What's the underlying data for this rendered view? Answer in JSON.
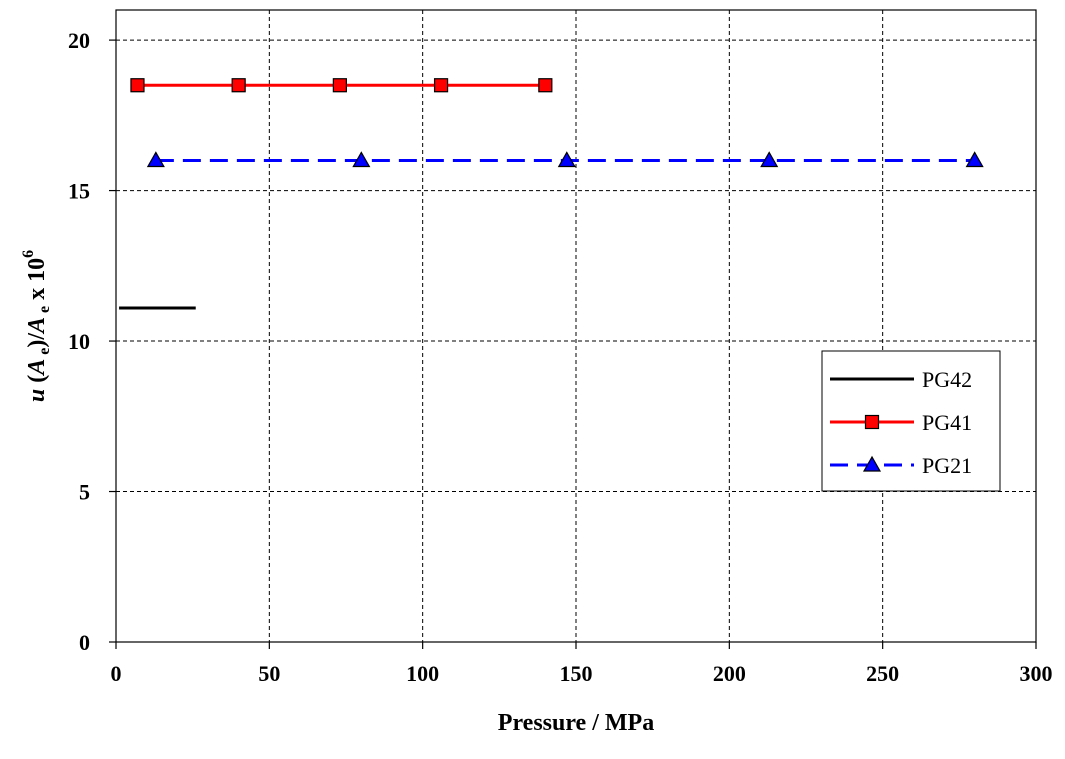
{
  "chart_data": {
    "type": "line",
    "title": "",
    "xlabel": "Pressure / MPa",
    "ylabel": {
      "u": "u",
      "open": " (",
      "A1": "A",
      "e1": " e",
      "close": ")/",
      "A2": "A",
      "e2": " e",
      "x": " x 10",
      "exp": "6"
    },
    "xlim": [
      0,
      300
    ],
    "ylim": [
      0,
      21
    ],
    "xticks": [
      0,
      50,
      100,
      150,
      200,
      250,
      300
    ],
    "xtick_labels": [
      "0",
      "50",
      "100",
      "150",
      "200",
      "250",
      "300"
    ],
    "yticks": [
      0,
      5,
      10,
      15,
      20
    ],
    "ytick_labels": [
      "0",
      "5",
      "10",
      "15",
      "20"
    ],
    "grid": true,
    "legend_position": "right",
    "series": [
      {
        "name": "PG42",
        "color": "#000000",
        "line": "solid",
        "marker": "none",
        "x": [
          1,
          26
        ],
        "y": [
          11.1,
          11.1
        ]
      },
      {
        "name": "PG41",
        "color": "#ff0000",
        "marker_fill": "#ff0000",
        "line": "solid",
        "marker": "square",
        "x": [
          7,
          40,
          73,
          106,
          140
        ],
        "y": [
          18.5,
          18.5,
          18.5,
          18.5,
          18.5
        ]
      },
      {
        "name": "PG21",
        "color": "#0000ff",
        "marker_fill": "#0000ff",
        "line": "dashed",
        "marker": "triangle",
        "x": [
          13,
          80,
          147,
          213,
          280
        ],
        "y": [
          16,
          16,
          16,
          16,
          16
        ]
      }
    ]
  }
}
